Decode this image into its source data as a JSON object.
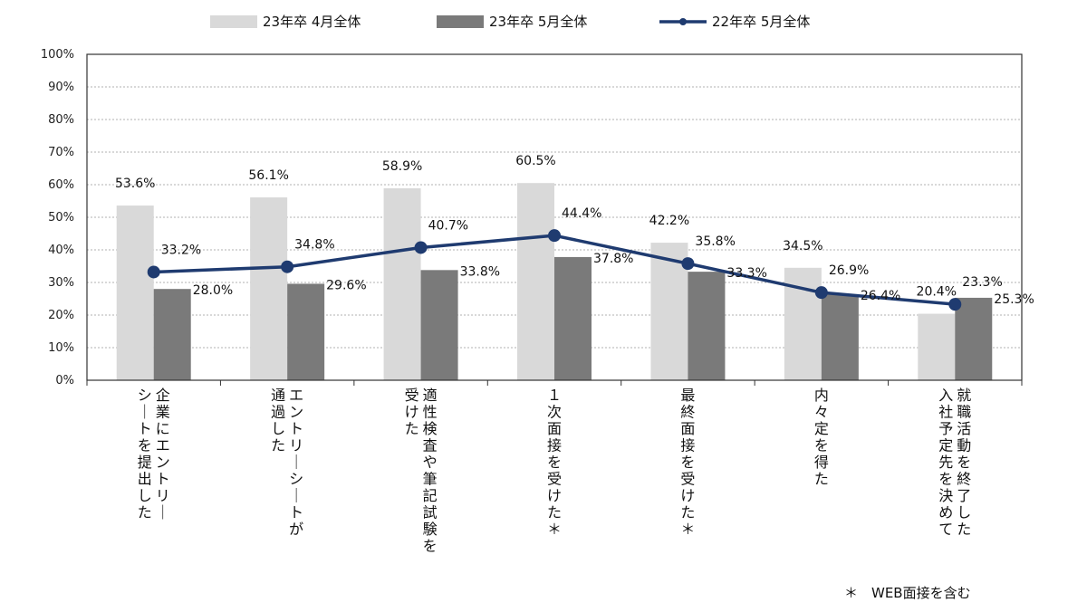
{
  "chart_data": {
    "type": "bar",
    "categories": [
      [
        "企業にエントリ｜",
        "シ｜トを提出した"
      ],
      [
        "エントリ｜シ｜トが",
        "通過した"
      ],
      [
        "適性検査や筆記試験を",
        "受けた"
      ],
      [
        "１次面接を受けた＊"
      ],
      [
        "最終面接を受けた＊"
      ],
      [
        "内々定を得た"
      ],
      [
        "就職活動を終了した",
        "入社予定先を決めて"
      ]
    ],
    "series": [
      {
        "name": "23年卒 4月全体",
        "kind": "bar",
        "color": "#d9d9d9",
        "values": [
          53.6,
          56.1,
          58.9,
          60.5,
          42.2,
          34.5,
          20.4
        ],
        "labels": [
          "53.6%",
          "56.1%",
          "58.9%",
          "60.5%",
          "42.2%",
          "34.5%",
          "20.4%"
        ]
      },
      {
        "name": "23年卒 5月全体",
        "kind": "bar",
        "color": "#7a7a7a",
        "values": [
          28.0,
          29.6,
          33.8,
          37.8,
          33.3,
          26.4,
          25.3
        ],
        "labels": [
          "28.0%",
          "29.6%",
          "33.8%",
          "37.8%",
          "33.3%",
          "26.4%",
          "25.3%"
        ]
      },
      {
        "name": "22年卒 5月全体",
        "kind": "line",
        "color": "#1f3b70",
        "values": [
          33.2,
          34.8,
          40.7,
          44.4,
          35.8,
          26.9,
          23.3
        ],
        "labels": [
          "33.2%",
          "34.8%",
          "40.7%",
          "44.4%",
          "35.8%",
          "26.9%",
          "23.3%"
        ]
      }
    ],
    "ylim": [
      0,
      100
    ],
    "yticks": [
      "0%",
      "10%",
      "20%",
      "30%",
      "40%",
      "50%",
      "60%",
      "70%",
      "80%",
      "90%",
      "100%"
    ],
    "grid": true,
    "legend": "top"
  },
  "footnote": "＊　WEB面接を含む"
}
